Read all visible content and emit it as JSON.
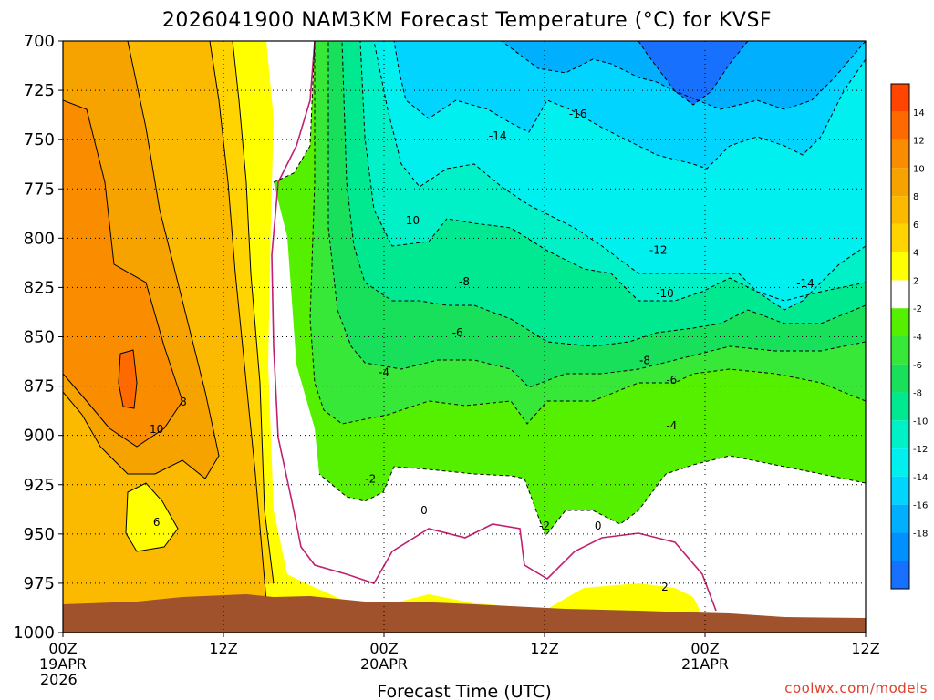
{
  "chart_data": {
    "type": "contour",
    "title": "2026041900 NAM3KM Forecast Temperature (°C) for KVSF",
    "xlabel": "Forecast Time (UTC)",
    "ylabel": "",
    "x_range_hours": [
      0,
      60
    ],
    "y_range_hpa": [
      700,
      1000
    ],
    "y_axis": "pressure (hPa), inverted",
    "yticks": [
      700,
      725,
      750,
      775,
      800,
      825,
      850,
      875,
      900,
      925,
      950,
      975,
      1000
    ],
    "xticks": [
      {
        "hour": 0,
        "lines": [
          "00Z",
          "19APR",
          "2026"
        ]
      },
      {
        "hour": 12,
        "lines": [
          "12Z"
        ]
      },
      {
        "hour": 24,
        "lines": [
          "00Z",
          "20APR"
        ]
      },
      {
        "hour": 36,
        "lines": [
          "12Z"
        ]
      },
      {
        "hour": 48,
        "lines": [
          "00Z",
          "21APR"
        ]
      },
      {
        "hour": 60,
        "lines": [
          "12Z"
        ]
      }
    ],
    "grid": "dotted",
    "colorbar": {
      "labels": [
        "14",
        "12",
        "10",
        "8",
        "6",
        "4",
        "2",
        "-2",
        "-4",
        "-6",
        "-8",
        "-10",
        "-12",
        "-14",
        "-16",
        "-18"
      ],
      "colors": [
        "#ff4500",
        "#ff6a00",
        "#fa8c00",
        "#f6a300",
        "#fbba00",
        "#ffd400",
        "#ffff00",
        "#ffffff",
        "#55f000",
        "#38e838",
        "#18e05a",
        "#00e890",
        "#00f0c8",
        "#00f0f0",
        "#00d4ff",
        "#00b0ff",
        "#0090ff",
        "#1870ff"
      ]
    },
    "regions": [
      {
        "label": "below ground",
        "color": "#a0522d"
      },
      {
        "label": "0 line",
        "color": "#c02070"
      }
    ],
    "contour_labels": [
      {
        "text": "-16",
        "hour": 38.5,
        "p": 737
      },
      {
        "text": "-14",
        "hour": 32.5,
        "p": 748
      },
      {
        "text": "-14",
        "hour": 55.5,
        "p": 823
      },
      {
        "text": "-12",
        "hour": 44.5,
        "p": 806
      },
      {
        "text": "-10",
        "hour": 26.0,
        "p": 791
      },
      {
        "text": "-10",
        "hour": 45.0,
        "p": 828
      },
      {
        "text": "-8",
        "hour": 30.0,
        "p": 822
      },
      {
        "text": "-8",
        "hour": 43.5,
        "p": 862
      },
      {
        "text": "-6",
        "hour": 29.5,
        "p": 848
      },
      {
        "text": "-6",
        "hour": 45.5,
        "p": 872
      },
      {
        "text": "-4",
        "hour": 24.0,
        "p": 868
      },
      {
        "text": "-4",
        "hour": 45.5,
        "p": 895
      },
      {
        "text": "-2",
        "hour": 23.0,
        "p": 922
      },
      {
        "text": "-2",
        "hour": 36.0,
        "p": 946
      },
      {
        "text": "0",
        "hour": 27.0,
        "p": 938
      },
      {
        "text": "0",
        "hour": 40.0,
        "p": 946
      },
      {
        "text": "2",
        "hour": 45.0,
        "p": 977
      },
      {
        "text": "6",
        "hour": 7.0,
        "p": 944
      },
      {
        "text": "8",
        "hour": 9.0,
        "p": 883
      },
      {
        "text": "10",
        "hour": 7.0,
        "p": 897
      }
    ],
    "watermark": "coolwx.com/models"
  }
}
